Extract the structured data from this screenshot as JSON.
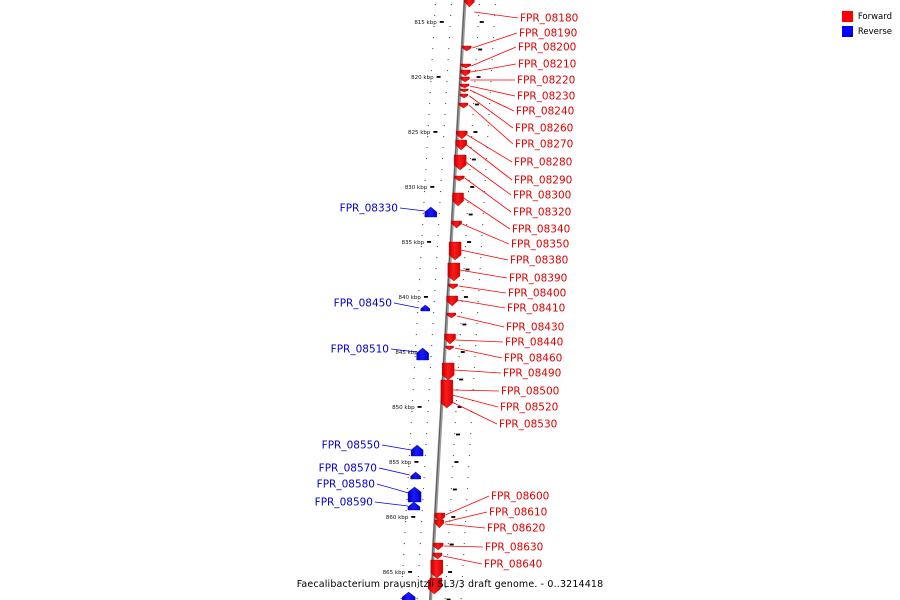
{
  "legend": {
    "forward": {
      "label": "Forward",
      "color": "#ff0000"
    },
    "reverse": {
      "label": "Reverse",
      "color": "#0000ff"
    }
  },
  "caption": "Faecalibacterium prausnitzii SL3/3 draft genome. - 0..3214418",
  "scale_ticks": [
    {
      "kbp": 815,
      "label": "815 kbp"
    },
    {
      "kbp": 820,
      "label": "820 kbp"
    },
    {
      "kbp": 825,
      "label": "825 kbp"
    },
    {
      "kbp": 830,
      "label": "830 kbp"
    },
    {
      "kbp": 835,
      "label": "835 kbp"
    },
    {
      "kbp": 840,
      "label": "840 kbp"
    },
    {
      "kbp": 845,
      "label": "845 kbp"
    },
    {
      "kbp": 850,
      "label": "850 kbp"
    },
    {
      "kbp": 855,
      "label": "855 kbp"
    },
    {
      "kbp": 860,
      "label": "860 kbp"
    },
    {
      "kbp": 865,
      "label": "865 kbp"
    }
  ],
  "forward_genes": [
    "FPR_08180",
    "FPR_08190",
    "FPR_08200",
    "FPR_08210",
    "FPR_08220",
    "FPR_08230",
    "FPR_08240",
    "FPR_08260",
    "FPR_08270",
    "FPR_08280",
    "FPR_08290",
    "FPR_08300",
    "FPR_08320",
    "FPR_08340",
    "FPR_08350",
    "FPR_08380",
    "FPR_08390",
    "FPR_08400",
    "FPR_08410",
    "FPR_08430",
    "FPR_08440",
    "FPR_08460",
    "FPR_08490",
    "FPR_08500",
    "FPR_08520",
    "FPR_08530",
    "FPR_08600",
    "FPR_08610",
    "FPR_08620",
    "FPR_08630",
    "FPR_08640"
  ],
  "reverse_genes": [
    "FPR_08330",
    "FPR_08450",
    "FPR_08510",
    "FPR_08550",
    "FPR_08570",
    "FPR_08580",
    "FPR_08590"
  ]
}
